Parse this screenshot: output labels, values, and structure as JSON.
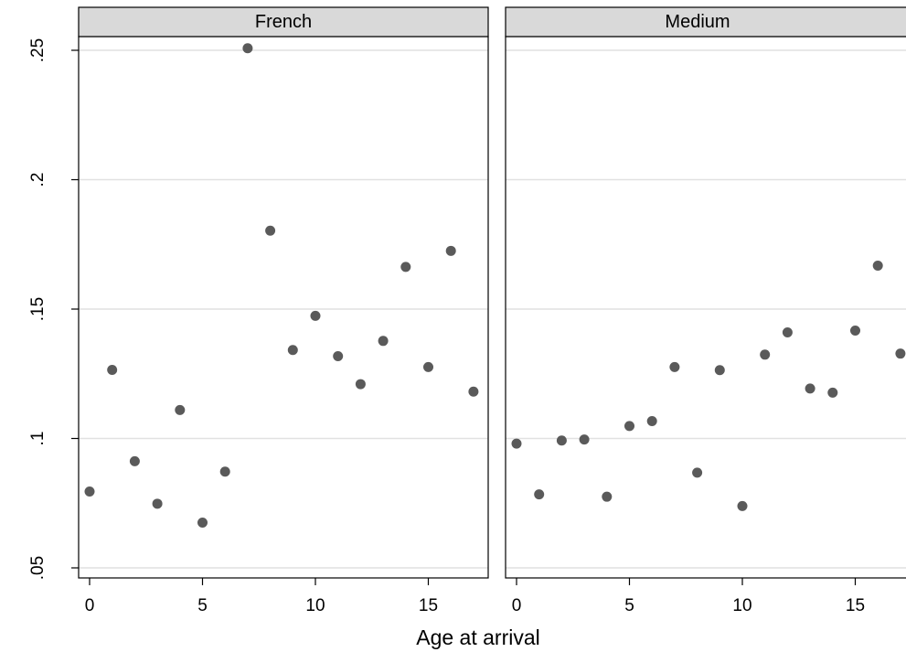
{
  "chart_data": {
    "type": "scatter",
    "xlabel": "Age at arrival",
    "ylabel": "",
    "ylim": [
      0.05,
      0.25
    ],
    "xlim": [
      0,
      17
    ],
    "x_ticks": [
      "0",
      "5",
      "10",
      "15"
    ],
    "y_ticks": [
      ".05",
      ".1",
      ".15",
      ".2",
      ".25"
    ],
    "grid": true,
    "marker_color": "#5a5a5a",
    "panels": [
      {
        "title": "French",
        "x": [
          0,
          1,
          2,
          3,
          4,
          5,
          6,
          7,
          8,
          9,
          10,
          11,
          12,
          13,
          14,
          15,
          16,
          17
        ],
        "y": [
          0.0795,
          0.1265,
          0.0912,
          0.0748,
          0.111,
          0.0675,
          0.0872,
          0.2508,
          0.1803,
          0.1342,
          0.1474,
          0.1318,
          0.121,
          0.1377,
          0.1663,
          0.1276,
          0.1725,
          0.1181
        ]
      },
      {
        "title": "Medium",
        "x": [
          0,
          1,
          2,
          3,
          4,
          5,
          6,
          7,
          8,
          9,
          10,
          11,
          12,
          13,
          14,
          15,
          16,
          17
        ],
        "y": [
          0.098,
          0.0784,
          0.0992,
          0.0996,
          0.0775,
          0.1048,
          0.1067,
          0.1276,
          0.0868,
          0.1264,
          0.0739,
          0.1324,
          0.141,
          0.1193,
          0.1177,
          0.1417,
          0.1668,
          0.1328
        ]
      }
    ]
  }
}
